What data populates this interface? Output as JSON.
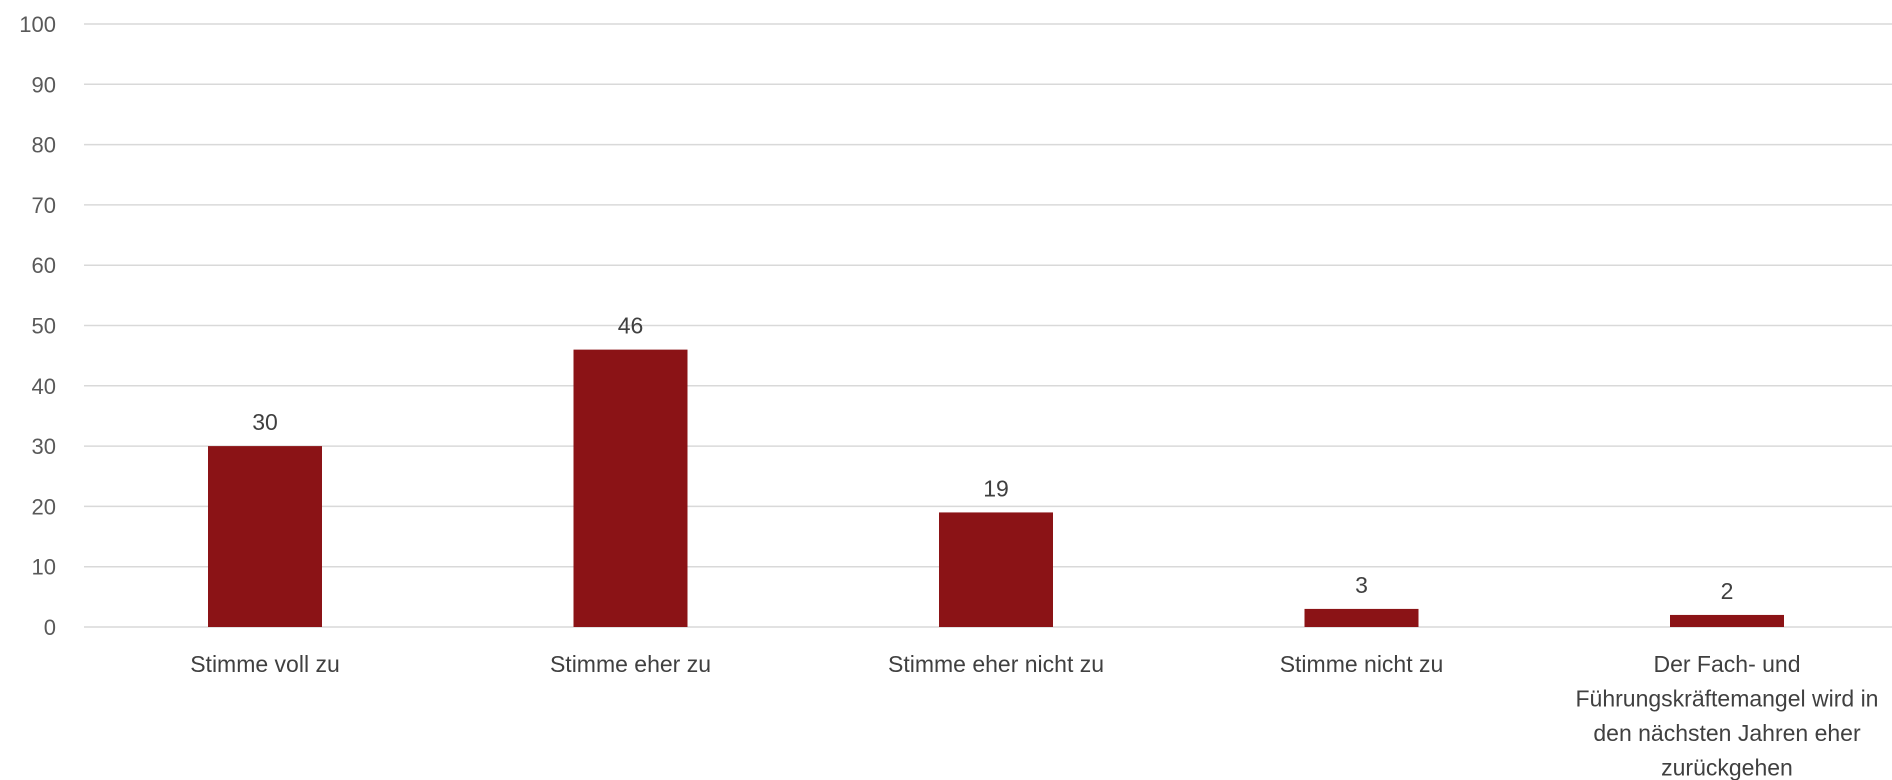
{
  "chart_data": {
    "type": "bar",
    "categories": [
      "Stimme voll zu",
      "Stimme eher zu",
      "Stimme eher nicht zu",
      "Stimme nicht zu",
      "Der Fach- und Führungskräftemangel wird in den nächsten Jahren eher zurückgehen"
    ],
    "category_lines": [
      [
        "Stimme voll zu"
      ],
      [
        "Stimme eher zu"
      ],
      [
        "Stimme eher nicht zu"
      ],
      [
        "Stimme nicht zu"
      ],
      [
        "Der Fach- und",
        "Führungskräftemangel wird in",
        "den nächsten Jahren eher",
        "zurückgehen"
      ]
    ],
    "values": [
      30,
      46,
      19,
      3,
      2
    ],
    "data_labels": [
      "30",
      "46",
      "19",
      "3",
      "2"
    ],
    "ylim": [
      0,
      100
    ],
    "yticks": [
      0,
      10,
      20,
      30,
      40,
      50,
      60,
      70,
      80,
      90,
      100
    ],
    "grid": true,
    "legend": "none",
    "bar_color": "#8B1316",
    "grid_color": "#d9d9d9",
    "axis_color": "#d9d9d9"
  }
}
